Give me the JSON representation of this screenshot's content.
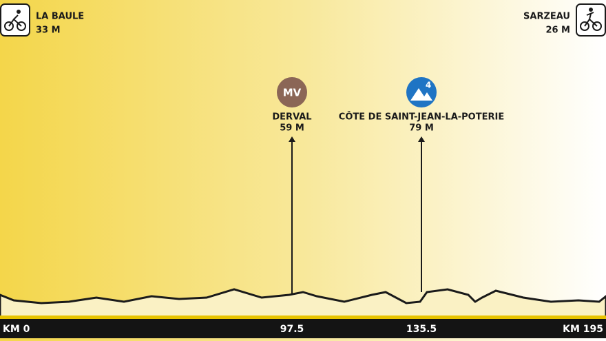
{
  "start": {
    "name": "LA BAULE",
    "altitude": "33 M"
  },
  "finish": {
    "name": "SARZEAU",
    "altitude": "26 M"
  },
  "points": [
    {
      "badge": "MV",
      "name": "DERVAL",
      "altitude": "59 M"
    },
    {
      "badge": "4",
      "name": "CÔTE DE SAINT-JEAN-LA-POTERIE",
      "altitude": "79 M"
    }
  ],
  "distance_labels": [
    "KM 0",
    "97.5",
    "135.5",
    "KM 195"
  ]
}
